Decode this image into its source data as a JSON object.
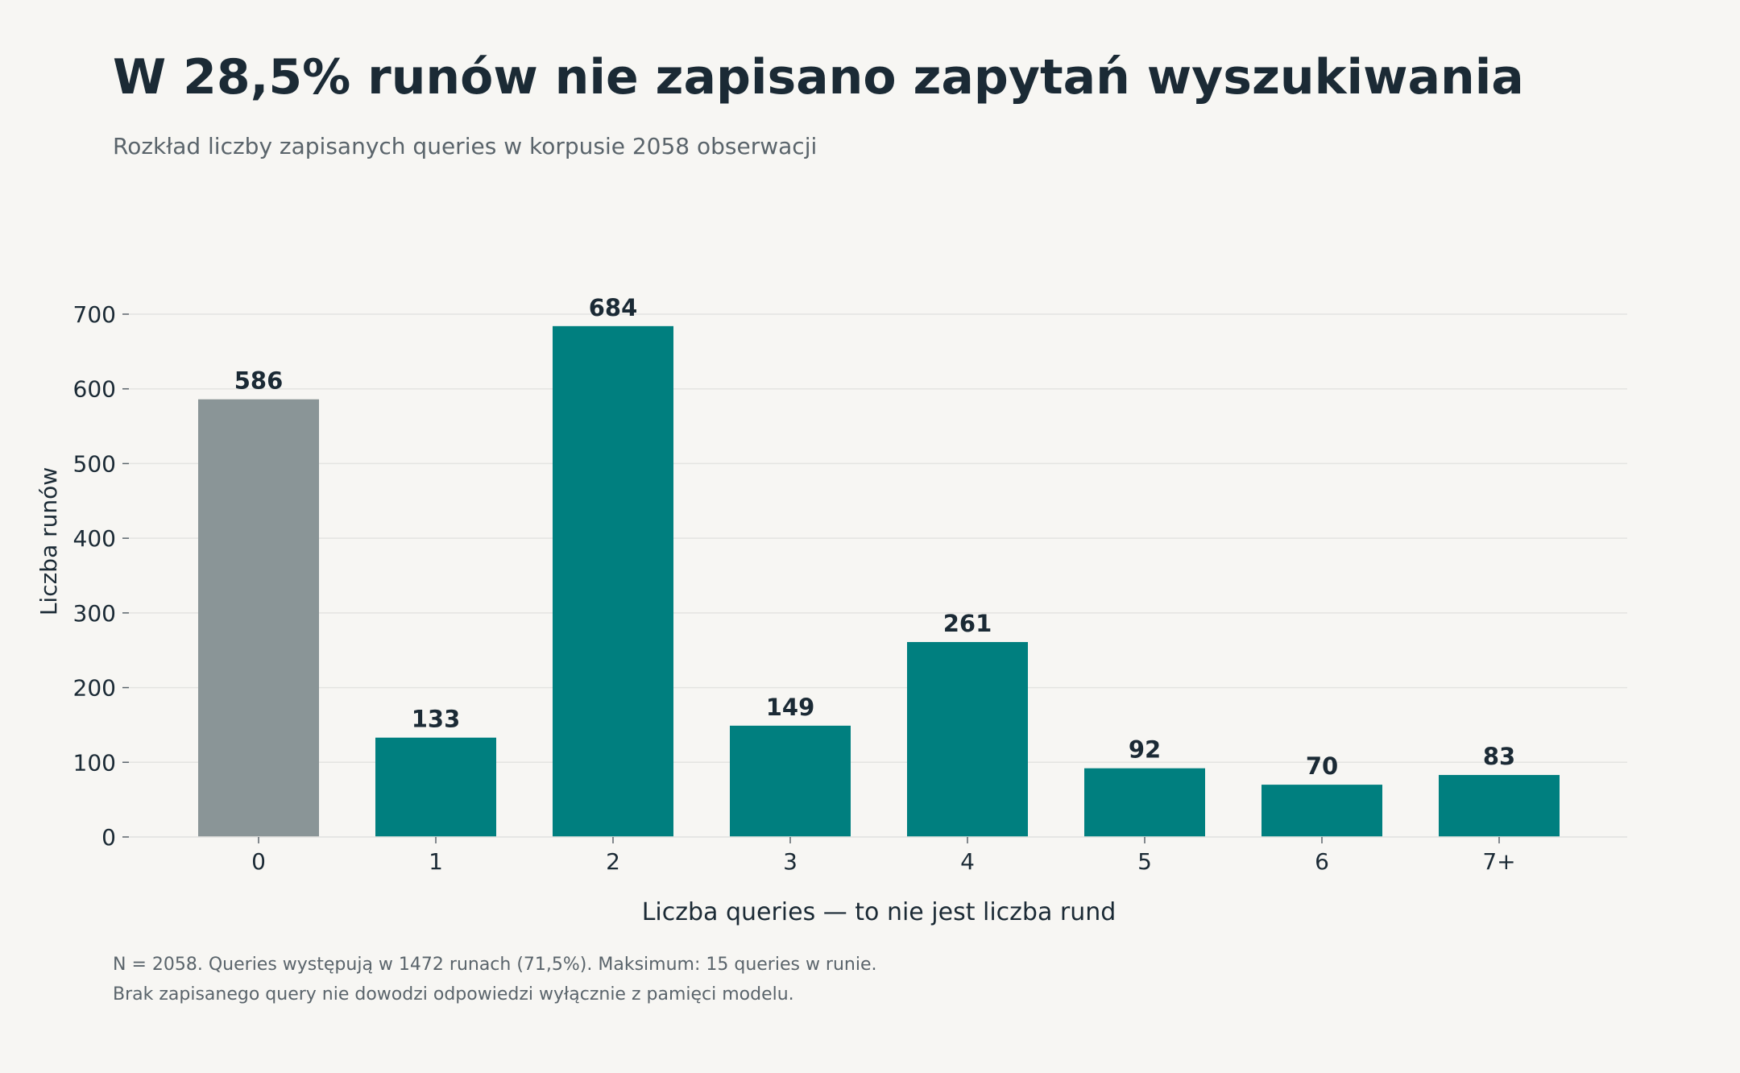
{
  "title": "W 28,5% runów nie zapisano zapytań wyszukiwania",
  "subtitle": "Rozkład liczby zapisanych queries w korpusie 2058 obserwacji",
  "footnotes": [
    "N = 2058. Queries występują w 1472 runach (71,5%). Maksimum: 15 queries w runie.",
    "Brak zapisanego query nie dowodzi odpowiedzi wyłącznie z pamięci modelu."
  ],
  "colors": {
    "highlight": "#8a9597",
    "bar": "#007f7f",
    "text": "#1b2a35",
    "muted": "#5a646b",
    "grid": "#e4e4e1",
    "background": "#f7f6f3"
  },
  "chart_data": {
    "type": "bar",
    "categories": [
      "0",
      "1",
      "2",
      "3",
      "4",
      "5",
      "6",
      "7+"
    ],
    "values": [
      586,
      133,
      684,
      149,
      261,
      92,
      70,
      83
    ],
    "data_labels": [
      "586",
      "133",
      "684",
      "149",
      "261",
      "92",
      "70",
      "83"
    ],
    "highlight_index": 0,
    "xlabel": "Liczba queries — to nie jest liczba rund",
    "ylabel": "Liczba runów",
    "ylim": [
      0,
      700
    ],
    "yticks": [
      0,
      100,
      200,
      300,
      400,
      500,
      600,
      700
    ],
    "ytick_labels": [
      "0",
      "100",
      "200",
      "300",
      "400",
      "500",
      "600",
      "700"
    ],
    "grid": true,
    "legend": "none"
  }
}
